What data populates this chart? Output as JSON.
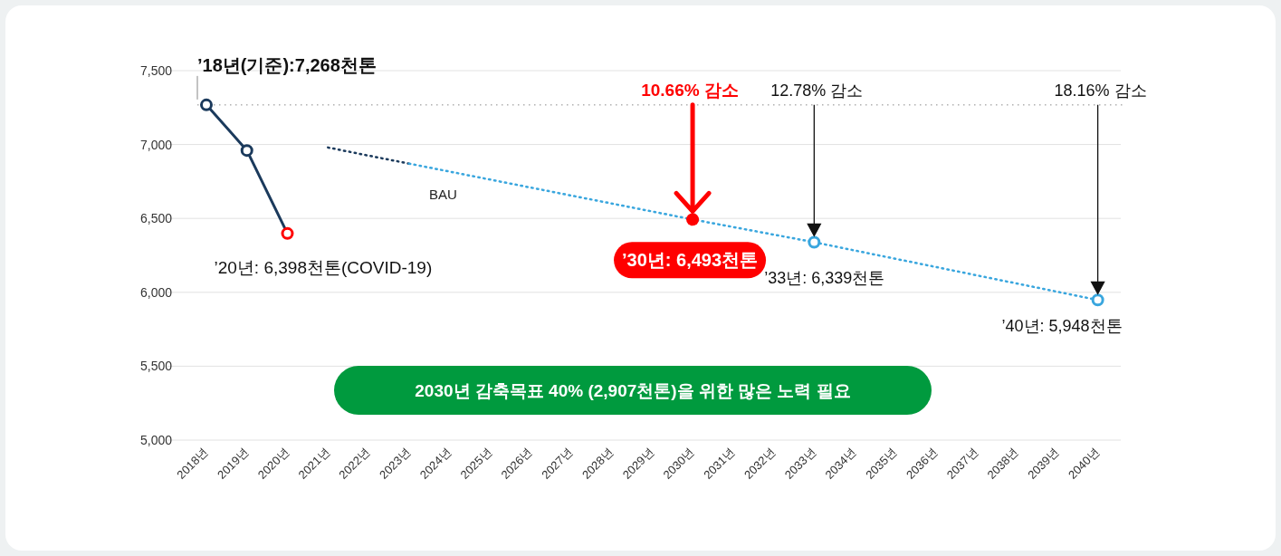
{
  "chart_data": {
    "type": "line",
    "categories": [
      "2018년",
      "2019년",
      "2020년",
      "2021년",
      "2022년",
      "2023년",
      "2024년",
      "2025년",
      "2026년",
      "2027년",
      "2028년",
      "2029년",
      "2030년",
      "2031년",
      "2032년",
      "2033년",
      "2034년",
      "2035년",
      "2036년",
      "2037년",
      "2038년",
      "2039년",
      "2040년"
    ],
    "ylim": [
      5000,
      7500
    ],
    "yticks": [
      {
        "value": 5000,
        "label": "5,000"
      },
      {
        "value": 5500,
        "label": "5,500"
      },
      {
        "value": 6000,
        "label": "6,000"
      },
      {
        "value": 6500,
        "label": "6,500"
      },
      {
        "value": 7000,
        "label": "7,000"
      },
      {
        "value": 7500,
        "label": "7,500"
      }
    ],
    "grid": "y",
    "legend": false,
    "series": [
      {
        "type": "line",
        "color": "#1b3a5c",
        "marker": "none",
        "line_style": "solid",
        "values": [
          7268,
          6960,
          6398,
          null,
          null,
          null,
          null,
          null,
          null,
          null,
          null,
          null,
          null,
          null,
          null,
          null,
          null,
          null,
          null,
          null,
          null,
          null,
          null
        ]
      },
      {
        "type": "scatter",
        "color": "#1b3a5c",
        "colors": [
          null,
          null,
          "#ff0000",
          null,
          null,
          null,
          null,
          null,
          null,
          null,
          null,
          null,
          null,
          null,
          null,
          null,
          null,
          null,
          null,
          null,
          null,
          null,
          null
        ],
        "marker": "circle",
        "values": [
          7268,
          6960,
          6398,
          null,
          null,
          null,
          null,
          null,
          null,
          null,
          null,
          null,
          null,
          null,
          null,
          null,
          null,
          null,
          null,
          null,
          null,
          null,
          null
        ]
      },
      {
        "type": "line",
        "color": "#1b3a5c",
        "marker": "none",
        "line_style": "dotted",
        "values": [
          null,
          null,
          null,
          6980,
          6925,
          6871,
          null,
          null,
          null,
          null,
          null,
          null,
          null,
          null,
          null,
          null,
          null,
          null,
          null,
          null,
          null,
          null,
          null
        ]
      },
      {
        "type": "line",
        "name": "BAU",
        "color": "#39a6de",
        "marker": "none",
        "line_style": "dotted",
        "values": [
          null,
          null,
          null,
          null,
          null,
          6871,
          null,
          null,
          null,
          null,
          null,
          null,
          6493,
          null,
          null,
          6339,
          null,
          null,
          null,
          null,
          null,
          null,
          5948
        ]
      },
      {
        "type": "scatter",
        "color": "#ff0000",
        "marker": "circle",
        "values": [
          null,
          null,
          null,
          null,
          null,
          null,
          null,
          null,
          null,
          null,
          null,
          null,
          6493,
          null,
          null,
          null,
          null,
          null,
          null,
          null,
          null,
          null,
          null
        ]
      },
      {
        "type": "scatter",
        "color": "#39a6de",
        "marker": "circle",
        "values": [
          null,
          null,
          null,
          null,
          null,
          null,
          null,
          null,
          null,
          null,
          null,
          null,
          null,
          null,
          null,
          6339,
          null,
          null,
          null,
          null,
          null,
          null,
          5948
        ]
      }
    ],
    "ref_lines": [
      {
        "axis": "y",
        "value": 7268,
        "label": "’18년(기준):7,268천톤",
        "color": "#888888",
        "line_style": "dotted"
      }
    ],
    "annotations": [
      {
        "text": "’20년: 6,398천톤(COVID-19)",
        "x": "2020년",
        "y": 6398
      },
      {
        "text": "’30년: 6,493천톤",
        "x": "2030년",
        "y": 6493
      },
      {
        "text": "’33년: 6,339천톤",
        "x": "2033년",
        "y": 6339
      },
      {
        "text": "’40년: 5,948천톤",
        "x": "2040년",
        "y": 5948
      },
      "10.66% 감소",
      "12.78% 감소",
      "18.16% 감소",
      "2030년 감축목표 40% (2,907천톤)을 위한 많은 노력 필요"
    ]
  }
}
